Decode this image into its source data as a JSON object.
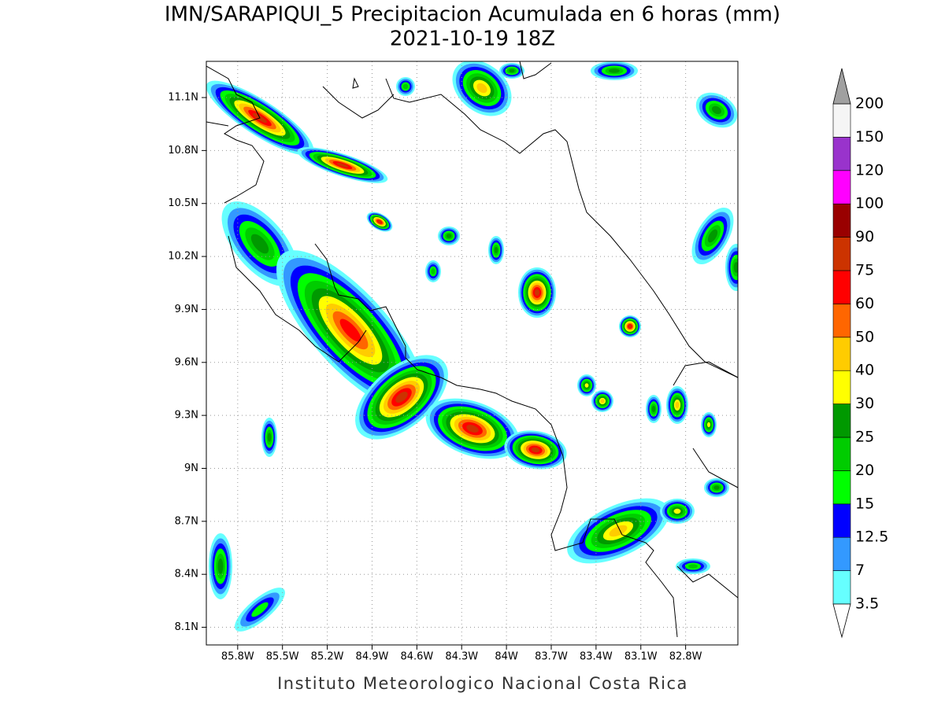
{
  "title": "IMN/SARAPIQUI_5 Precipitacion Acumulada en 6 horas (mm)",
  "subtitle": "2021-10-19 18Z",
  "map": {
    "xlim": [
      -86.01,
      -82.45
    ],
    "ylim": [
      8.0,
      11.305
    ],
    "grid": true,
    "xticks": [
      {
        "value": -85.8,
        "label": "85.8W"
      },
      {
        "value": -85.5,
        "label": "85.5W"
      },
      {
        "value": -85.2,
        "label": "85.2W"
      },
      {
        "value": -84.9,
        "label": "84.9W"
      },
      {
        "value": -84.6,
        "label": "84.6W"
      },
      {
        "value": -84.3,
        "label": "84.3W"
      },
      {
        "value": -84.0,
        "label": "84W"
      },
      {
        "value": -83.7,
        "label": "83.7W"
      },
      {
        "value": -83.4,
        "label": "83.4W"
      },
      {
        "value": -83.1,
        "label": "83.1W"
      },
      {
        "value": -82.8,
        "label": "82.8W"
      }
    ],
    "yticks": [
      {
        "value": 8.1,
        "label": "8.1N"
      },
      {
        "value": 8.4,
        "label": "8.4N"
      },
      {
        "value": 8.7,
        "label": "8.7N"
      },
      {
        "value": 9.0,
        "label": "9N"
      },
      {
        "value": 9.3,
        "label": "9.3N"
      },
      {
        "value": 9.6,
        "label": "9.6N"
      },
      {
        "value": 9.9,
        "label": "9.9N"
      },
      {
        "value": 10.2,
        "label": "10.2N"
      },
      {
        "value": 10.5,
        "label": "10.5N"
      },
      {
        "value": 10.8,
        "label": "10.8N"
      },
      {
        "value": 11.1,
        "label": "11.1N"
      }
    ]
  },
  "colorbar": {
    "levels": [
      3.5,
      7,
      12.5,
      15,
      20,
      25,
      30,
      40,
      50,
      60,
      75,
      90,
      100,
      120,
      150,
      200
    ],
    "colors": [
      "#66ffff",
      "#3399ff",
      "#0000ff",
      "#00ff00",
      "#00cc00",
      "#009900",
      "#ffff00",
      "#ffcc00",
      "#ff6600",
      "#ff0000",
      "#cc3300",
      "#990000",
      "#ff00ff",
      "#9933cc",
      "#f5f5f5"
    ],
    "under_color": "#ffffff",
    "over_color": "#a0a0a0"
  },
  "footer": "Instituto Meteorologico Nacional Costa Rica"
}
